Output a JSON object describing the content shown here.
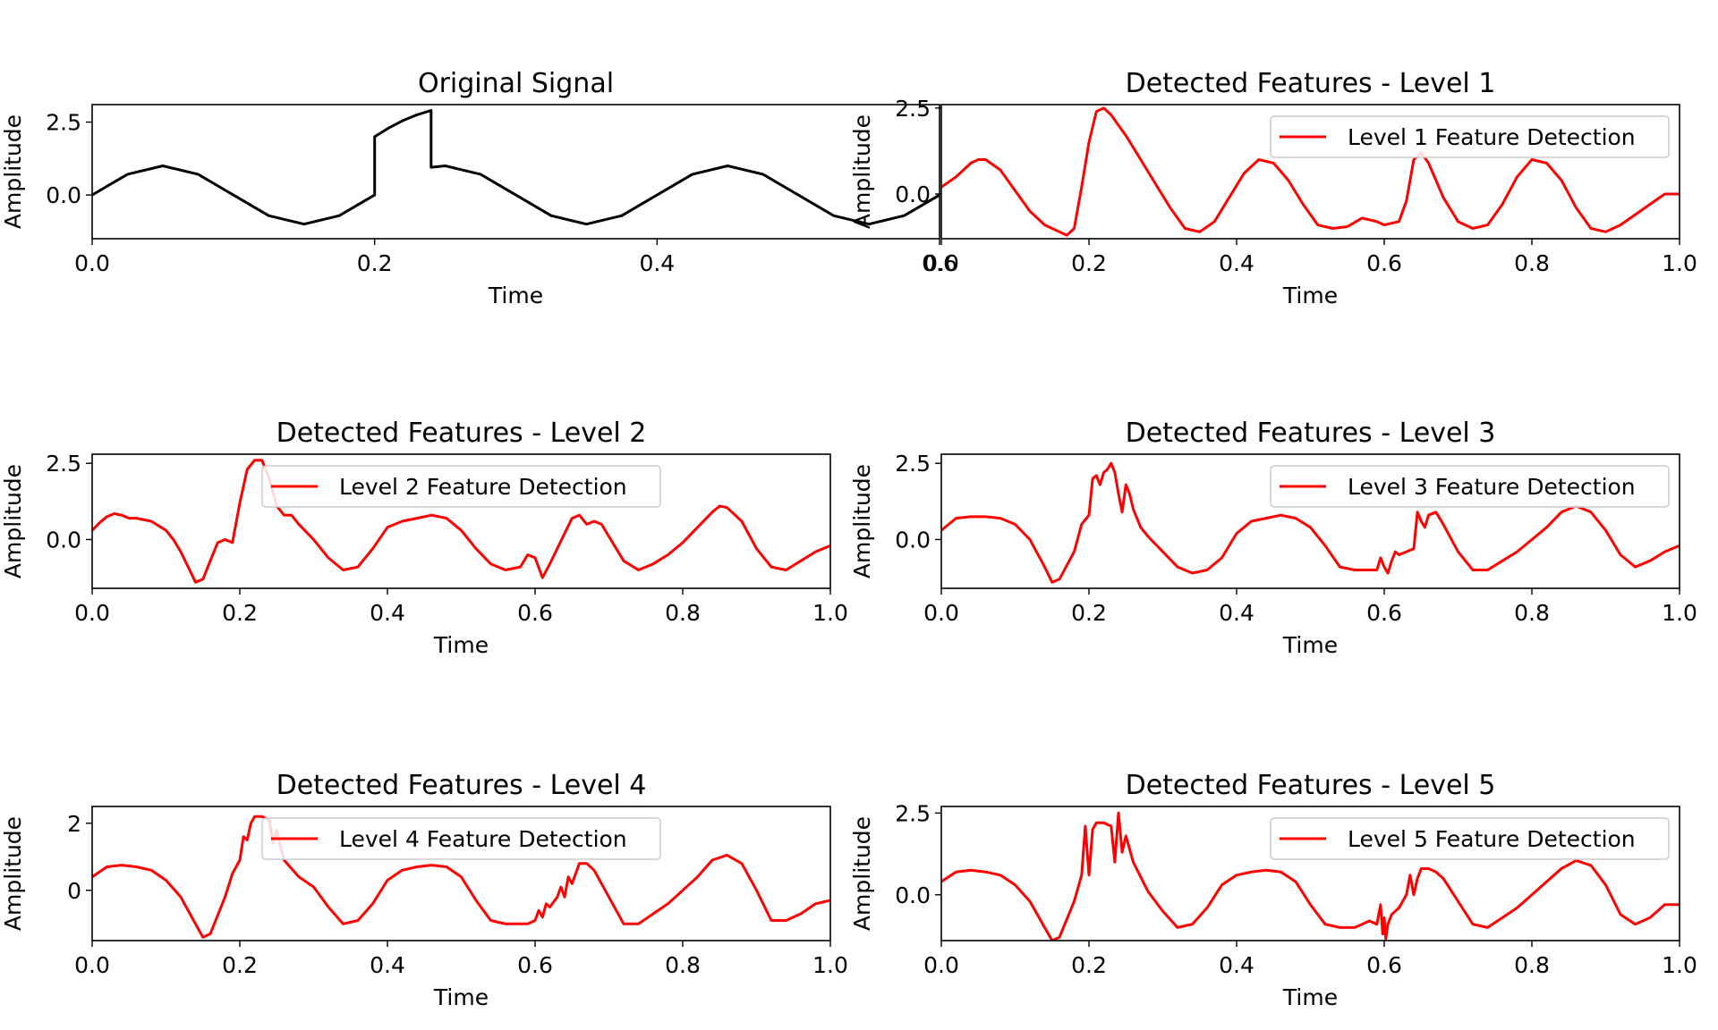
{
  "chart_data": [
    {
      "type": "line",
      "title": "Original Signal",
      "xlabel": "Time",
      "ylabel": "Amplitude",
      "xlim": [
        0,
        0.6
      ],
      "ylim": [
        -1.5,
        3.1
      ],
      "xticks": [
        0.0,
        0.2,
        0.4,
        0.6
      ],
      "xtick_labels": [
        "0.0",
        "0.2",
        "0.4",
        "0.6"
      ],
      "yticks": [
        0.0,
        2.5
      ],
      "ytick_labels": [
        "0.0",
        "2.5"
      ],
      "legend": null,
      "color": "#000000",
      "series": [
        {
          "name": "",
          "x": [
            0.0,
            0.025,
            0.05,
            0.075,
            0.1,
            0.125,
            0.15,
            0.175,
            0.2,
            0.2,
            0.205,
            0.21,
            0.22,
            0.23,
            0.24,
            0.24,
            0.25,
            0.275,
            0.3,
            0.325,
            0.35,
            0.375,
            0.4,
            0.425,
            0.45,
            0.475,
            0.5,
            0.525,
            0.55,
            0.575,
            0.6
          ],
          "y": [
            0.0,
            0.71,
            1.0,
            0.71,
            0.0,
            -0.71,
            -1.0,
            -0.71,
            0.0,
            2.0,
            2.15,
            2.3,
            2.55,
            2.75,
            2.9,
            0.95,
            1.0,
            0.71,
            0.0,
            -0.71,
            -1.0,
            -0.71,
            0.0,
            0.71,
            1.0,
            0.71,
            0.0,
            -0.71,
            -1.0,
            -0.71,
            0.0
          ]
        }
      ]
    },
    {
      "type": "line",
      "title": "Detected Features - Level 1",
      "xlabel": "Time",
      "ylabel": "Amplitude",
      "xlim": [
        0,
        1.0
      ],
      "ylim": [
        -1.3,
        2.6
      ],
      "xticks": [
        0.0,
        0.2,
        0.4,
        0.6,
        0.8,
        1.0
      ],
      "xtick_labels": [
        "0.0",
        "0.2",
        "0.4",
        "0.6",
        "0.8",
        "1.0"
      ],
      "yticks": [
        0.0,
        2.5
      ],
      "ytick_labels": [
        "0.0",
        "2.5"
      ],
      "legend": "top-right",
      "color": "#ff0000",
      "series": [
        {
          "name": "Level 1 Feature Detection",
          "x": [
            0.0,
            0.02,
            0.04,
            0.05,
            0.06,
            0.08,
            0.1,
            0.12,
            0.14,
            0.16,
            0.17,
            0.18,
            0.19,
            0.2,
            0.21,
            0.22,
            0.23,
            0.24,
            0.25,
            0.27,
            0.29,
            0.31,
            0.33,
            0.35,
            0.37,
            0.39,
            0.41,
            0.43,
            0.45,
            0.47,
            0.49,
            0.51,
            0.53,
            0.55,
            0.57,
            0.59,
            0.6,
            0.62,
            0.63,
            0.64,
            0.65,
            0.66,
            0.67,
            0.68,
            0.7,
            0.72,
            0.74,
            0.76,
            0.78,
            0.8,
            0.82,
            0.84,
            0.86,
            0.88,
            0.9,
            0.92,
            0.94,
            0.96,
            0.98,
            1.0
          ],
          "y": [
            0.2,
            0.5,
            0.9,
            1.0,
            1.0,
            0.7,
            0.1,
            -0.5,
            -0.9,
            -1.1,
            -1.2,
            -1.0,
            0.2,
            1.5,
            2.4,
            2.5,
            2.3,
            2.0,
            1.7,
            1.0,
            0.3,
            -0.4,
            -1.0,
            -1.1,
            -0.8,
            -0.1,
            0.6,
            1.0,
            0.9,
            0.4,
            -0.3,
            -0.9,
            -1.0,
            -0.95,
            -0.7,
            -0.8,
            -0.9,
            -0.8,
            -0.2,
            1.0,
            1.2,
            0.9,
            0.4,
            -0.1,
            -0.8,
            -1.0,
            -0.9,
            -0.3,
            0.5,
            1.0,
            0.9,
            0.4,
            -0.4,
            -1.0,
            -1.1,
            -0.9,
            -0.6,
            -0.3,
            0.0,
            0.0
          ]
        }
      ]
    },
    {
      "type": "line",
      "title": "Detected Features - Level 2",
      "xlabel": "Time",
      "ylabel": "Amplitude",
      "xlim": [
        0,
        1.0
      ],
      "ylim": [
        -1.6,
        2.8
      ],
      "xticks": [
        0.0,
        0.2,
        0.4,
        0.6,
        0.8,
        1.0
      ],
      "xtick_labels": [
        "0.0",
        "0.2",
        "0.4",
        "0.6",
        "0.8",
        "1.0"
      ],
      "yticks": [
        0.0,
        2.5
      ],
      "ytick_labels": [
        "0.0",
        "2.5"
      ],
      "legend": "top-center",
      "color": "#ff0000",
      "series": [
        {
          "name": "Level 2 Feature Detection",
          "x": [
            0.0,
            0.01,
            0.02,
            0.03,
            0.04,
            0.05,
            0.06,
            0.08,
            0.1,
            0.11,
            0.12,
            0.13,
            0.14,
            0.15,
            0.16,
            0.17,
            0.18,
            0.19,
            0.2,
            0.21,
            0.22,
            0.23,
            0.24,
            0.25,
            0.26,
            0.27,
            0.28,
            0.3,
            0.32,
            0.34,
            0.36,
            0.38,
            0.4,
            0.42,
            0.44,
            0.46,
            0.48,
            0.5,
            0.52,
            0.54,
            0.56,
            0.58,
            0.59,
            0.6,
            0.61,
            0.62,
            0.64,
            0.65,
            0.66,
            0.67,
            0.68,
            0.69,
            0.7,
            0.72,
            0.74,
            0.76,
            0.78,
            0.8,
            0.82,
            0.84,
            0.85,
            0.86,
            0.88,
            0.9,
            0.92,
            0.94,
            0.96,
            0.98,
            1.0
          ],
          "y": [
            0.3,
            0.55,
            0.75,
            0.85,
            0.8,
            0.7,
            0.7,
            0.6,
            0.3,
            0.0,
            -0.4,
            -0.9,
            -1.4,
            -1.3,
            -0.7,
            -0.1,
            0.0,
            -0.1,
            1.2,
            2.3,
            2.6,
            2.6,
            2.0,
            1.1,
            0.8,
            0.8,
            0.5,
            0.0,
            -0.6,
            -1.0,
            -0.9,
            -0.3,
            0.4,
            0.6,
            0.7,
            0.8,
            0.7,
            0.3,
            -0.3,
            -0.8,
            -1.0,
            -0.9,
            -0.5,
            -0.6,
            -1.25,
            -0.8,
            0.2,
            0.7,
            0.8,
            0.5,
            0.6,
            0.5,
            0.1,
            -0.7,
            -1.0,
            -0.8,
            -0.5,
            -0.1,
            0.4,
            0.9,
            1.1,
            1.05,
            0.6,
            -0.3,
            -0.9,
            -1.0,
            -0.7,
            -0.4,
            -0.2
          ]
        }
      ]
    },
    {
      "type": "line",
      "title": "Detected Features - Level 3",
      "xlabel": "Time",
      "ylabel": "Amplitude",
      "xlim": [
        0,
        1.0
      ],
      "ylim": [
        -1.6,
        2.8
      ],
      "xticks": [
        0.0,
        0.2,
        0.4,
        0.6,
        0.8,
        1.0
      ],
      "xtick_labels": [
        "0.0",
        "0.2",
        "0.4",
        "0.6",
        "0.8",
        "1.0"
      ],
      "yticks": [
        0.0,
        2.5
      ],
      "ytick_labels": [
        "0.0",
        "2.5"
      ],
      "legend": "top-right",
      "color": "#ff0000",
      "series": [
        {
          "name": "Level 3 Feature Detection",
          "x": [
            0.0,
            0.02,
            0.04,
            0.06,
            0.08,
            0.1,
            0.12,
            0.14,
            0.15,
            0.16,
            0.18,
            0.19,
            0.2,
            0.205,
            0.21,
            0.215,
            0.22,
            0.225,
            0.23,
            0.235,
            0.24,
            0.245,
            0.25,
            0.255,
            0.26,
            0.27,
            0.28,
            0.3,
            0.32,
            0.34,
            0.36,
            0.38,
            0.4,
            0.42,
            0.44,
            0.46,
            0.48,
            0.5,
            0.52,
            0.54,
            0.56,
            0.58,
            0.59,
            0.595,
            0.6,
            0.605,
            0.61,
            0.615,
            0.62,
            0.63,
            0.64,
            0.645,
            0.65,
            0.655,
            0.66,
            0.67,
            0.68,
            0.7,
            0.72,
            0.74,
            0.76,
            0.78,
            0.8,
            0.82,
            0.84,
            0.86,
            0.88,
            0.9,
            0.92,
            0.94,
            0.96,
            0.98,
            1.0
          ],
          "y": [
            0.3,
            0.7,
            0.75,
            0.75,
            0.7,
            0.5,
            0.0,
            -0.9,
            -1.4,
            -1.3,
            -0.4,
            0.5,
            0.8,
            2.0,
            2.1,
            1.8,
            2.2,
            2.3,
            2.5,
            2.2,
            1.5,
            0.9,
            1.8,
            1.5,
            1.0,
            0.4,
            0.1,
            -0.4,
            -0.9,
            -1.1,
            -1.0,
            -0.6,
            0.2,
            0.6,
            0.7,
            0.8,
            0.7,
            0.4,
            -0.2,
            -0.9,
            -1.0,
            -1.0,
            -1.0,
            -0.6,
            -0.9,
            -1.1,
            -0.7,
            -0.4,
            -0.5,
            -0.4,
            -0.3,
            0.9,
            0.6,
            0.4,
            0.8,
            0.9,
            0.5,
            -0.4,
            -1.0,
            -1.0,
            -0.7,
            -0.4,
            0.0,
            0.4,
            0.9,
            1.1,
            0.9,
            0.3,
            -0.5,
            -0.9,
            -0.7,
            -0.4,
            -0.2
          ]
        }
      ]
    },
    {
      "type": "line",
      "title": "Detected Features - Level 4",
      "xlabel": "Time",
      "ylabel": "Amplitude",
      "xlim": [
        0,
        1.0
      ],
      "ylim": [
        -1.5,
        2.5
      ],
      "xticks": [
        0.0,
        0.2,
        0.4,
        0.6,
        0.8,
        1.0
      ],
      "xtick_labels": [
        "0.0",
        "0.2",
        "0.4",
        "0.6",
        "0.8",
        "1.0"
      ],
      "yticks": [
        0,
        2
      ],
      "ytick_labels": [
        "0",
        "2"
      ],
      "legend": "top-center",
      "color": "#ff0000",
      "series": [
        {
          "name": "Level 4 Feature Detection",
          "x": [
            0.0,
            0.02,
            0.04,
            0.06,
            0.08,
            0.1,
            0.12,
            0.14,
            0.15,
            0.16,
            0.18,
            0.19,
            0.2,
            0.205,
            0.21,
            0.215,
            0.22,
            0.23,
            0.24,
            0.245,
            0.25,
            0.255,
            0.26,
            0.28,
            0.3,
            0.32,
            0.34,
            0.36,
            0.38,
            0.4,
            0.42,
            0.44,
            0.46,
            0.48,
            0.5,
            0.52,
            0.54,
            0.56,
            0.58,
            0.59,
            0.6,
            0.605,
            0.61,
            0.615,
            0.62,
            0.63,
            0.635,
            0.64,
            0.645,
            0.65,
            0.66,
            0.67,
            0.68,
            0.7,
            0.72,
            0.74,
            0.76,
            0.78,
            0.8,
            0.82,
            0.84,
            0.86,
            0.88,
            0.9,
            0.92,
            0.94,
            0.96,
            0.98,
            1.0
          ],
          "y": [
            0.4,
            0.7,
            0.75,
            0.7,
            0.6,
            0.3,
            -0.2,
            -1.0,
            -1.4,
            -1.3,
            -0.2,
            0.5,
            0.9,
            1.6,
            1.5,
            2.0,
            2.2,
            2.2,
            2.1,
            1.4,
            1.8,
            1.3,
            0.9,
            0.4,
            0.1,
            -0.5,
            -1.0,
            -0.9,
            -0.4,
            0.3,
            0.6,
            0.7,
            0.75,
            0.7,
            0.4,
            -0.3,
            -0.9,
            -1.0,
            -1.0,
            -1.0,
            -0.9,
            -0.6,
            -0.8,
            -0.4,
            -0.5,
            -0.2,
            0.1,
            -0.2,
            0.4,
            0.2,
            0.8,
            0.8,
            0.6,
            -0.2,
            -1.0,
            -1.0,
            -0.7,
            -0.4,
            0.0,
            0.4,
            0.9,
            1.05,
            0.8,
            0.0,
            -0.9,
            -0.9,
            -0.7,
            -0.4,
            -0.3
          ]
        }
      ]
    },
    {
      "type": "line",
      "title": "Detected Features - Level 5",
      "xlabel": "Time",
      "ylabel": "Amplitude",
      "xlim": [
        0,
        1.0
      ],
      "ylim": [
        -1.4,
        2.7
      ],
      "xticks": [
        0.0,
        0.2,
        0.4,
        0.6,
        0.8,
        1.0
      ],
      "xtick_labels": [
        "0.0",
        "0.2",
        "0.4",
        "0.6",
        "0.8",
        "1.0"
      ],
      "yticks": [
        0.0,
        2.5
      ],
      "ytick_labels": [
        "0.0",
        "2.5"
      ],
      "legend": "top-right",
      "color": "#ff0000",
      "series": [
        {
          "name": "Level 5 Feature Detection",
          "x": [
            0.0,
            0.02,
            0.04,
            0.06,
            0.08,
            0.1,
            0.12,
            0.14,
            0.15,
            0.16,
            0.18,
            0.19,
            0.195,
            0.2,
            0.205,
            0.21,
            0.215,
            0.22,
            0.23,
            0.235,
            0.24,
            0.245,
            0.25,
            0.26,
            0.28,
            0.3,
            0.32,
            0.34,
            0.36,
            0.38,
            0.4,
            0.42,
            0.44,
            0.46,
            0.48,
            0.5,
            0.52,
            0.54,
            0.56,
            0.58,
            0.59,
            0.595,
            0.598,
            0.6,
            0.602,
            0.605,
            0.61,
            0.62,
            0.63,
            0.635,
            0.64,
            0.645,
            0.65,
            0.66,
            0.67,
            0.68,
            0.7,
            0.72,
            0.74,
            0.76,
            0.78,
            0.8,
            0.82,
            0.84,
            0.86,
            0.88,
            0.9,
            0.92,
            0.94,
            0.96,
            0.98,
            1.0
          ],
          "y": [
            0.4,
            0.7,
            0.75,
            0.7,
            0.6,
            0.3,
            -0.2,
            -1.0,
            -1.4,
            -1.3,
            -0.2,
            0.6,
            2.1,
            0.6,
            2.0,
            2.2,
            2.2,
            2.2,
            2.1,
            1.0,
            2.5,
            1.3,
            1.8,
            1.0,
            0.1,
            -0.5,
            -1.0,
            -0.9,
            -0.4,
            0.3,
            0.6,
            0.7,
            0.75,
            0.7,
            0.4,
            -0.3,
            -0.9,
            -1.0,
            -1.0,
            -0.8,
            -0.9,
            -0.3,
            -1.2,
            -0.7,
            -1.35,
            -0.9,
            -0.6,
            -0.4,
            0.0,
            0.6,
            0.0,
            0.5,
            0.8,
            0.8,
            0.7,
            0.5,
            -0.2,
            -0.9,
            -1.0,
            -0.7,
            -0.4,
            0.0,
            0.4,
            0.8,
            1.05,
            0.9,
            0.3,
            -0.6,
            -0.9,
            -0.7,
            -0.3,
            -0.3
          ]
        }
      ]
    }
  ]
}
